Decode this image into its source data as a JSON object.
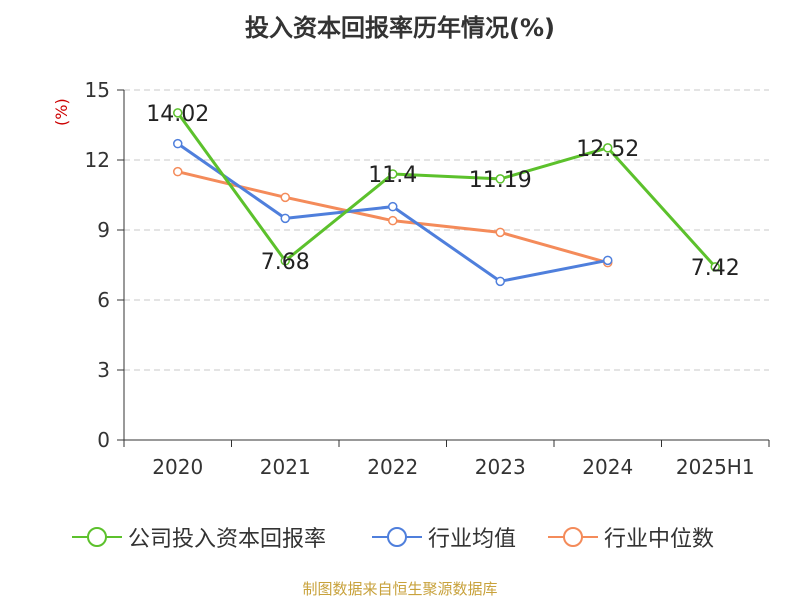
{
  "title": "投入资本回报率历年情况(%)",
  "unit_label": "(%)",
  "source": "制图数据来自恒生聚源数据库",
  "chart_data": {
    "type": "line",
    "title": "投入资本回报率历年情况(%)",
    "xlabel": "",
    "ylabel": "(%)",
    "categories": [
      "2020",
      "2021",
      "2022",
      "2023",
      "2024",
      "2025H1"
    ],
    "ylim": [
      0,
      15
    ],
    "yticks": [
      0,
      3,
      6,
      9,
      12,
      15
    ],
    "grid": true,
    "legend_position": "bottom",
    "series": [
      {
        "name": "公司投入资本回报率",
        "color": "#5cc12c",
        "values": [
          14.02,
          7.68,
          11.4,
          11.19,
          12.52,
          7.42
        ],
        "labels": [
          "14.02",
          "7.68",
          "11.4",
          "11.19",
          "12.52",
          "7.42"
        ]
      },
      {
        "name": "行业均值",
        "color": "#4f7fdc",
        "values": [
          12.7,
          9.5,
          10.0,
          6.8,
          7.7,
          null
        ]
      },
      {
        "name": "行业中位数",
        "color": "#f48b5a",
        "values": [
          11.5,
          10.4,
          9.4,
          8.9,
          7.6,
          null
        ]
      }
    ]
  }
}
